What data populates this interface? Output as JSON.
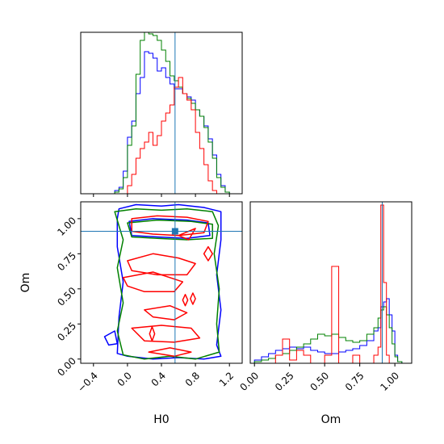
{
  "chart_data": {
    "type": "corner",
    "parameters": [
      "H0",
      "Om"
    ],
    "truths": {
      "H0": 0.56,
      "Om": 0.91
    },
    "truth_color": "#1f77b4",
    "series_colors": {
      "blue": "#0000ff",
      "green": "#008000",
      "red": "#ff0000"
    },
    "panels": [
      {
        "id": "hist-H0",
        "type": "step-histogram",
        "xlim": [
          -0.55,
          1.35
        ],
        "ylim": [
          0,
          1.0
        ],
        "xticks": [
          -0.4,
          0.0,
          0.4,
          0.8,
          1.2
        ],
        "x_tick_labels_shown": false,
        "bin_edges": [
          -0.35,
          -0.3,
          -0.25,
          -0.2,
          -0.15,
          -0.1,
          -0.05,
          0.0,
          0.05,
          0.1,
          0.15,
          0.2,
          0.25,
          0.3,
          0.35,
          0.4,
          0.45,
          0.5,
          0.55,
          0.6,
          0.65,
          0.7,
          0.75,
          0.8,
          0.85,
          0.9,
          0.95,
          1.0,
          1.05,
          1.1,
          1.15,
          1.2,
          1.25
        ],
        "series": [
          {
            "color": "blue",
            "values": [
              0,
              0,
              0,
              0,
              0.02,
              0.04,
              0.14,
              0.35,
              0.45,
              0.62,
              0.72,
              0.88,
              0.87,
              0.84,
              0.76,
              0.78,
              0.72,
              0.68,
              0.65,
              0.65,
              0.62,
              0.6,
              0.58,
              0.52,
              0.48,
              0.42,
              0.34,
              0.24,
              0.12,
              0.05,
              0.01,
              0,
              0
            ]
          },
          {
            "color": "green",
            "values": [
              0,
              0,
              0,
              0,
              0.01,
              0.03,
              0.1,
              0.3,
              0.42,
              0.74,
              0.95,
              1.0,
              0.99,
              0.98,
              0.95,
              0.89,
              0.82,
              0.73,
              0.7,
              0.66,
              0.62,
              0.59,
              0.56,
              0.52,
              0.48,
              0.41,
              0.32,
              0.22,
              0.1,
              0.04,
              0.01,
              0,
              0
            ]
          },
          {
            "color": "red",
            "values": [
              0,
              0,
              0,
              0,
              0,
              0,
              0,
              0.05,
              0.12,
              0.22,
              0.28,
              0.32,
              0.38,
              0.3,
              0.36,
              0.45,
              0.5,
              0.55,
              0.66,
              0.72,
              0.62,
              0.58,
              0.52,
              0.38,
              0.28,
              0.18,
              0.08,
              0.02,
              0,
              0,
              0,
              0,
              0
            ]
          }
        ]
      },
      {
        "id": "scatter-H0-Om",
        "type": "contours",
        "xlabel": "H0",
        "ylabel": "Om",
        "xlim": [
          -0.55,
          1.35
        ],
        "ylim": [
          -0.03,
          1.12
        ],
        "xticks": [
          -0.4,
          0.0,
          0.4,
          0.8,
          1.2
        ],
        "yticks": [
          0.0,
          0.25,
          0.5,
          0.75,
          1.0
        ],
        "x_tick_labels": [
          "−0.4",
          "0.0",
          "0.4",
          "0.8",
          "1.2"
        ],
        "y_tick_labels": [
          "0.00",
          "0.25",
          "0.50",
          "0.75",
          "1.00"
        ],
        "series": [
          {
            "color": "blue",
            "contours": [
              [
                [
                  -0.1,
                  1.07
                ],
                [
                  0.1,
                  1.1
                ],
                [
                  0.4,
                  1.09
                ],
                [
                  0.6,
                  1.1
                ],
                [
                  0.9,
                  1.08
                ],
                [
                  1.1,
                  1.05
                ],
                [
                  1.1,
                  0.85
                ],
                [
                  1.05,
                  0.6
                ],
                [
                  1.1,
                  0.35
                ],
                [
                  1.05,
                  0.1
                ],
                [
                  1.1,
                  0.02
                ],
                [
                  0.9,
                  0.0
                ],
                [
                  0.6,
                  0.01
                ],
                [
                  0.3,
                  0.0
                ],
                [
                  0.0,
                  0.02
                ],
                [
                  -0.12,
                  0.04
                ],
                [
                  -0.1,
                  0.3
                ],
                [
                  -0.05,
                  0.55
                ],
                [
                  -0.12,
                  0.8
                ],
                [
                  -0.12,
                  1.0
                ]
              ],
              [
                [
                  -0.27,
                  0.16
                ],
                [
                  -0.15,
                  0.2
                ],
                [
                  -0.12,
                  0.11
                ],
                [
                  -0.22,
                  0.1
                ]
              ],
              [
                [
                  0.02,
                  0.98
                ],
                [
                  0.3,
                  1.0
                ],
                [
                  0.7,
                  0.99
                ],
                [
                  0.95,
                  0.97
                ],
                [
                  0.97,
                  0.88
                ],
                [
                  0.7,
                  0.86
                ],
                [
                  0.35,
                  0.87
                ],
                [
                  0.05,
                  0.88
                ]
              ]
            ]
          },
          {
            "color": "green",
            "contours": [
              [
                [
                  -0.15,
                  1.05
                ],
                [
                  0.1,
                  1.07
                ],
                [
                  0.4,
                  1.06
                ],
                [
                  0.7,
                  1.07
                ],
                [
                  1.0,
                  1.05
                ],
                [
                  1.07,
                  0.95
                ],
                [
                  1.02,
                  0.75
                ],
                [
                  1.08,
                  0.5
                ],
                [
                  1.05,
                  0.25
                ],
                [
                  1.08,
                  0.05
                ],
                [
                  0.8,
                  0.0
                ],
                [
                  0.5,
                  0.02
                ],
                [
                  0.2,
                  0.0
                ],
                [
                  -0.05,
                  0.03
                ],
                [
                  -0.12,
                  0.2
                ],
                [
                  -0.05,
                  0.4
                ],
                [
                  -0.12,
                  0.65
                ],
                [
                  -0.05,
                  0.85
                ]
              ],
              [
                [
                  0.0,
                  0.97
                ],
                [
                  0.35,
                  0.99
                ],
                [
                  0.75,
                  0.98
                ],
                [
                  1.0,
                  0.96
                ],
                [
                  1.0,
                  0.86
                ],
                [
                  0.7,
                  0.85
                ],
                [
                  0.35,
                  0.86
                ],
                [
                  0.05,
                  0.87
                ]
              ]
            ]
          },
          {
            "color": "red",
            "contours": [
              [
                [
                  0.05,
                  1.0
                ],
                [
                  0.35,
                  1.02
                ],
                [
                  0.7,
                  1.01
                ],
                [
                  0.95,
                  0.98
                ],
                [
                  0.9,
                  0.9
                ],
                [
                  0.6,
                  0.88
                ],
                [
                  0.3,
                  0.89
                ],
                [
                  0.05,
                  0.91
                ]
              ],
              [
                [
                  0.6,
                  0.88
                ],
                [
                  0.8,
                  0.93
                ],
                [
                  0.72,
                  0.85
                ]
              ],
              [
                [
                  0.0,
                  0.7
                ],
                [
                  0.3,
                  0.75
                ],
                [
                  0.6,
                  0.72
                ],
                [
                  0.8,
                  0.68
                ],
                [
                  0.7,
                  0.6
                ],
                [
                  0.35,
                  0.6
                ],
                [
                  0.05,
                  0.63
                ]
              ],
              [
                [
                  -0.05,
                  0.58
                ],
                [
                  0.3,
                  0.62
                ],
                [
                  0.65,
                  0.55
                ],
                [
                  0.55,
                  0.48
                ],
                [
                  0.2,
                  0.48
                ],
                [
                  0.0,
                  0.52
                ]
              ],
              [
                [
                  0.2,
                  0.35
                ],
                [
                  0.5,
                  0.38
                ],
                [
                  0.7,
                  0.33
                ],
                [
                  0.55,
                  0.28
                ],
                [
                  0.3,
                  0.3
                ]
              ],
              [
                [
                  0.05,
                  0.22
                ],
                [
                  0.4,
                  0.24
                ],
                [
                  0.75,
                  0.22
                ],
                [
                  0.85,
                  0.15
                ],
                [
                  0.55,
                  0.12
                ],
                [
                  0.2,
                  0.13
                ]
              ],
              [
                [
                  0.25,
                  0.05
                ],
                [
                  0.5,
                  0.08
                ],
                [
                  0.75,
                  0.05
                ],
                [
                  0.55,
                  0.02
                ]
              ],
              [
                [
                  0.26,
                  0.18
                ],
                [
                  0.29,
                  0.23
                ],
                [
                  0.32,
                  0.18
                ],
                [
                  0.29,
                  0.13
                ]
              ],
              [
                [
                  0.65,
                  0.42
                ],
                [
                  0.68,
                  0.46
                ],
                [
                  0.71,
                  0.42
                ],
                [
                  0.68,
                  0.38
                ]
              ],
              [
                [
                  0.74,
                  0.43
                ],
                [
                  0.77,
                  0.47
                ],
                [
                  0.8,
                  0.43
                ],
                [
                  0.77,
                  0.39
                ]
              ],
              [
                [
                  0.9,
                  0.75
                ],
                [
                  0.95,
                  0.8
                ],
                [
                  1.0,
                  0.75
                ],
                [
                  0.95,
                  0.7
                ]
              ]
            ]
          }
        ]
      },
      {
        "id": "hist-Om",
        "type": "step-histogram",
        "xlabel": "Om",
        "xlim": [
          -0.03,
          1.12
        ],
        "ylim": [
          0,
          1.0
        ],
        "xticks": [
          0.0,
          0.25,
          0.5,
          0.75,
          1.0
        ],
        "x_tick_labels": [
          "0.00",
          "0.25",
          "0.50",
          "0.75",
          "1.00"
        ],
        "bin_edges": [
          0.0,
          0.05,
          0.1,
          0.15,
          0.2,
          0.25,
          0.3,
          0.35,
          0.4,
          0.45,
          0.5,
          0.55,
          0.6,
          0.65,
          0.7,
          0.75,
          0.8,
          0.85,
          0.88,
          0.9,
          0.92,
          0.94,
          0.96,
          0.98,
          1.0,
          1.02,
          1.05
        ],
        "series": [
          {
            "color": "blue",
            "values": [
              0.02,
              0.04,
              0.06,
              0.08,
              0.09,
              0.1,
              0.09,
              0.1,
              0.08,
              0.07,
              0.06,
              0.06,
              0.07,
              0.08,
              0.09,
              0.11,
              0.14,
              0.2,
              0.22,
              0.35,
              0.38,
              0.4,
              0.3,
              0.2,
              0.05,
              0.01
            ]
          },
          {
            "color": "green",
            "values": [
              0.01,
              0.02,
              0.03,
              0.05,
              0.06,
              0.08,
              0.1,
              0.12,
              0.15,
              0.18,
              0.17,
              0.18,
              0.16,
              0.14,
              0.13,
              0.14,
              0.18,
              0.22,
              0.28,
              0.33,
              0.35,
              0.3,
              0.22,
              0.12,
              0.04,
              0.01
            ]
          },
          {
            "color": "red",
            "values": [
              0,
              0,
              0,
              0.05,
              0.15,
              0.02,
              0.08,
              0.05,
              0,
              0,
              0.05,
              0.6,
              0,
              0,
              0.05,
              0,
              0,
              0.05,
              0.1,
              0.98,
              0.5,
              0.05,
              0,
              0,
              0,
              0
            ]
          }
        ]
      }
    ]
  }
}
